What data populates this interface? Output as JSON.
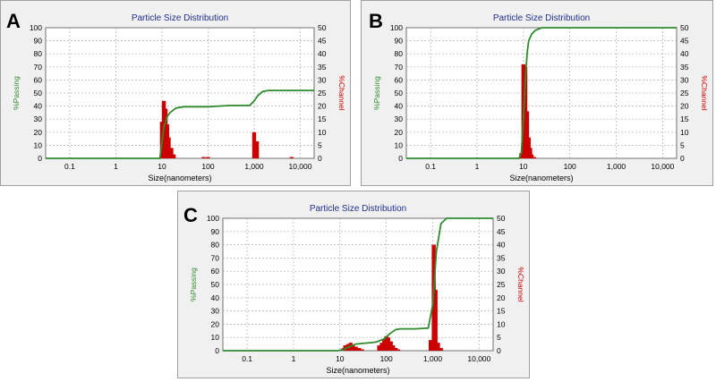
{
  "colors": {
    "passing": "#2e8b2e",
    "channel": "#cc0000",
    "title": "#1f2f8c",
    "plot_bg": "#ffffff",
    "grid": "#b0b0b0"
  },
  "chart_data": [
    {
      "panel": "A",
      "type": "bar",
      "title": "Particle Size Distribution",
      "xlabel": "Size(nanometers)",
      "ylabel_left": "%Passing",
      "ylabel_right": "%Channel",
      "xscale": "log",
      "xlim": [
        0.03,
        20000
      ],
      "ylim_left": [
        0,
        100
      ],
      "ylim_right": [
        0,
        50
      ],
      "xticks": [
        0.1,
        1,
        10,
        100,
        1000,
        10000
      ],
      "xticklabels": [
        "0.1",
        "1",
        "10",
        "100",
        "1,000",
        "10,000"
      ],
      "yticks_left": [
        0,
        10,
        20,
        30,
        40,
        50,
        60,
        70,
        80,
        90,
        100
      ],
      "yticks_right": [
        0,
        5,
        10,
        15,
        20,
        25,
        30,
        35,
        40,
        45,
        50
      ],
      "grid": true,
      "series": [
        {
          "name": "%Passing",
          "type": "line",
          "axis": "left",
          "x": [
            0.03,
            9,
            10,
            11,
            13,
            15,
            20,
            30,
            100,
            300,
            800,
            1000,
            1200,
            1500,
            2000,
            20000
          ],
          "y": [
            0,
            0,
            12,
            24,
            32,
            35,
            38.5,
            39.5,
            39.5,
            40.5,
            40.5,
            44,
            48,
            51,
            52,
            52
          ]
        },
        {
          "name": "%Channel",
          "type": "bar",
          "axis": "right",
          "x": [
            10,
            11,
            12,
            13,
            14,
            16,
            18,
            80,
            100,
            1000,
            1150,
            6500
          ],
          "y": [
            14,
            22,
            19,
            13,
            8,
            4,
            1.5,
            0.5,
            0.5,
            10,
            6.5,
            0.5
          ]
        }
      ]
    },
    {
      "panel": "B",
      "type": "bar",
      "title": "Particle Size Distribution",
      "xlabel": "Size(nanometers)",
      "ylabel_left": "%Passing",
      "ylabel_right": "%Channel",
      "xscale": "log",
      "xlim": [
        0.03,
        20000
      ],
      "ylim_left": [
        0,
        100
      ],
      "ylim_right": [
        0,
        50
      ],
      "xticks": [
        0.1,
        1,
        10,
        100,
        1000,
        10000
      ],
      "xticklabels": [
        "0.1",
        "1",
        "10",
        "100",
        "1,000",
        "10,000"
      ],
      "yticks_left": [
        0,
        10,
        20,
        30,
        40,
        50,
        60,
        70,
        80,
        90,
        100
      ],
      "yticks_right": [
        0,
        5,
        10,
        15,
        20,
        25,
        30,
        35,
        40,
        45,
        50
      ],
      "grid": true,
      "series": [
        {
          "name": "%Passing",
          "type": "line",
          "axis": "left",
          "x": [
            0.03,
            8,
            9,
            10,
            11,
            12,
            13,
            15,
            18,
            25,
            20000
          ],
          "y": [
            0,
            0,
            4,
            30,
            60,
            80,
            90,
            95,
            98,
            100,
            100
          ]
        },
        {
          "name": "%Channel",
          "type": "bar",
          "axis": "right",
          "x": [
            9,
            10,
            11,
            12,
            13,
            14,
            15,
            17
          ],
          "y": [
            2,
            36,
            35,
            18,
            8,
            4,
            1.5,
            0.5
          ]
        }
      ]
    },
    {
      "panel": "C",
      "type": "bar",
      "title": "Particle Size Distribution",
      "xlabel": "Size(nanometers)",
      "ylabel_left": "%Passing",
      "ylabel_right": "%Channel",
      "xscale": "log",
      "xlim": [
        0.03,
        20000
      ],
      "ylim_left": [
        0,
        100
      ],
      "ylim_right": [
        0,
        50
      ],
      "xticks": [
        0.1,
        1,
        10,
        100,
        1000,
        10000
      ],
      "xticklabels": [
        "0.1",
        "1",
        "10",
        "100",
        "1,000",
        "10,000"
      ],
      "yticks_left": [
        0,
        10,
        20,
        30,
        40,
        50,
        60,
        70,
        80,
        90,
        100
      ],
      "yticks_right": [
        0,
        5,
        10,
        15,
        20,
        25,
        30,
        35,
        40,
        45,
        50
      ],
      "grid": true,
      "series": [
        {
          "name": "%Passing",
          "type": "line",
          "axis": "left",
          "x": [
            0.03,
            9,
            12,
            16,
            22,
            30,
            45,
            60,
            90,
            120,
            160,
            200,
            400,
            800,
            1000,
            1200,
            1500,
            2000,
            20000
          ],
          "y": [
            0,
            0,
            1,
            3,
            5,
            5.5,
            6,
            6.5,
            9,
            13,
            16,
            16.5,
            16.5,
            17,
            35,
            75,
            96,
            100,
            100
          ]
        },
        {
          "name": "%Channel",
          "type": "bar",
          "axis": "right",
          "x": [
            12,
            13,
            15,
            17,
            19,
            22,
            26,
            30,
            70,
            80,
            90,
            100,
            110,
            125,
            140,
            160,
            180,
            900,
            1050,
            1150,
            1300,
            1500
          ],
          "y": [
            1,
            2,
            2.5,
            3,
            2,
            1.5,
            1,
            0.5,
            2,
            3,
            4.5,
            5.5,
            5,
            3.5,
            2,
            1,
            0.5,
            4,
            40,
            23,
            3,
            1
          ]
        }
      ]
    }
  ]
}
